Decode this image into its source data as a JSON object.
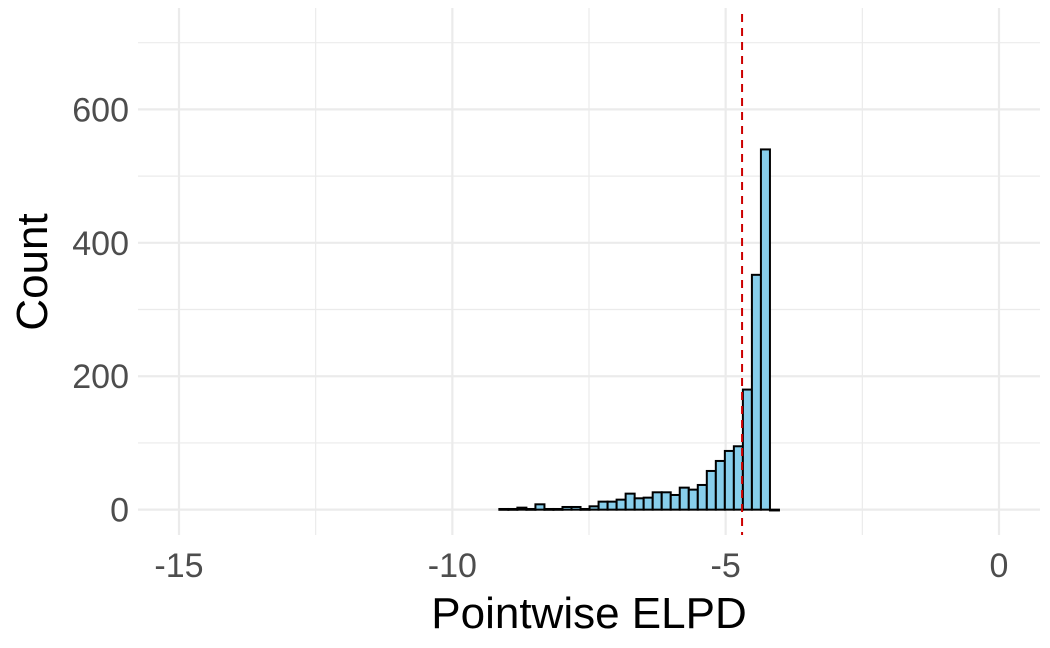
{
  "chart_data": {
    "type": "bar",
    "xlabel": "Pointwise ELPD",
    "ylabel": "Count",
    "xlim": [
      -15.75,
      0.75
    ],
    "ylim": [
      -38,
      752
    ],
    "x_major_ticks": [
      -15,
      -10,
      -5,
      0
    ],
    "x_tick_labels": [
      "-15",
      "-10",
      "-5",
      "0"
    ],
    "x_minor_ticks": [
      -12.5,
      -7.5,
      -2.5
    ],
    "y_major_ticks": [
      0,
      200,
      400,
      600
    ],
    "y_tick_labels": [
      "0",
      "200",
      "400",
      "600"
    ],
    "y_minor_ticks": [
      100,
      300,
      500,
      700
    ],
    "grid": true,
    "bin_width": 0.165,
    "bin_left_edges": [
      -9.14,
      -8.975,
      -8.81,
      -8.645,
      -8.48,
      -8.315,
      -8.15,
      -7.985,
      -7.82,
      -7.655,
      -7.49,
      -7.325,
      -7.16,
      -6.995,
      -6.83,
      -6.665,
      -6.5,
      -6.335,
      -6.17,
      -6.005,
      -5.84,
      -5.675,
      -5.51,
      -5.345,
      -5.18,
      -5.015,
      -4.85,
      -4.685,
      -4.52,
      -4.355,
      -4.19
    ],
    "values": [
      1,
      1,
      3,
      1,
      8,
      1,
      1,
      4,
      4,
      1,
      5,
      12,
      12,
      15,
      24,
      17,
      18,
      26,
      26,
      22,
      33,
      30,
      37,
      58,
      73,
      88,
      95,
      180,
      352,
      540,
      0
    ],
    "reference_line": {
      "x": -4.7,
      "style": "dashed",
      "color": "#cc0000"
    },
    "colors": {
      "bar_fill": "#87ceeb",
      "bar_stroke": "#000000",
      "grid": "#ebebeb",
      "tick_text": "#4d4d4d"
    }
  }
}
